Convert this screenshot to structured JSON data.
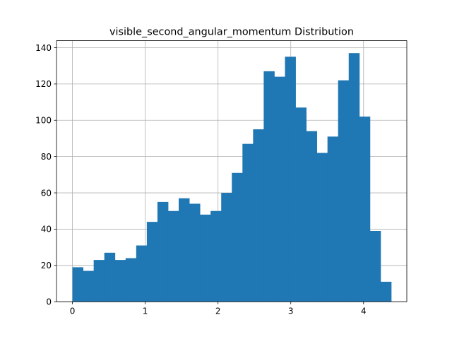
{
  "chart_data": {
    "type": "bar",
    "title": "visible_second_angular_momentum Distribution",
    "xlabel": "",
    "ylabel": "",
    "xlim": [
      -0.219,
      4.594
    ],
    "ylim": [
      0,
      143.85
    ],
    "x_ticks": [
      0,
      1,
      2,
      3,
      4
    ],
    "x_tick_labels": [
      "0",
      "1",
      "2",
      "3",
      "4"
    ],
    "y_ticks": [
      0,
      20,
      40,
      60,
      80,
      100,
      120,
      140
    ],
    "y_tick_labels": [
      "0",
      "20",
      "40",
      "60",
      "80",
      "100",
      "120",
      "140"
    ],
    "grid": true,
    "bar_color": "#1f77b4",
    "bin_start": 0.0,
    "bin_width": 0.146,
    "values": [
      19,
      17,
      23,
      27,
      23,
      24,
      31,
      44,
      55,
      50,
      57,
      54,
      48,
      50,
      60,
      71,
      87,
      95,
      127,
      124,
      135,
      107,
      94,
      82,
      91,
      122,
      137,
      102,
      39,
      11
    ]
  }
}
